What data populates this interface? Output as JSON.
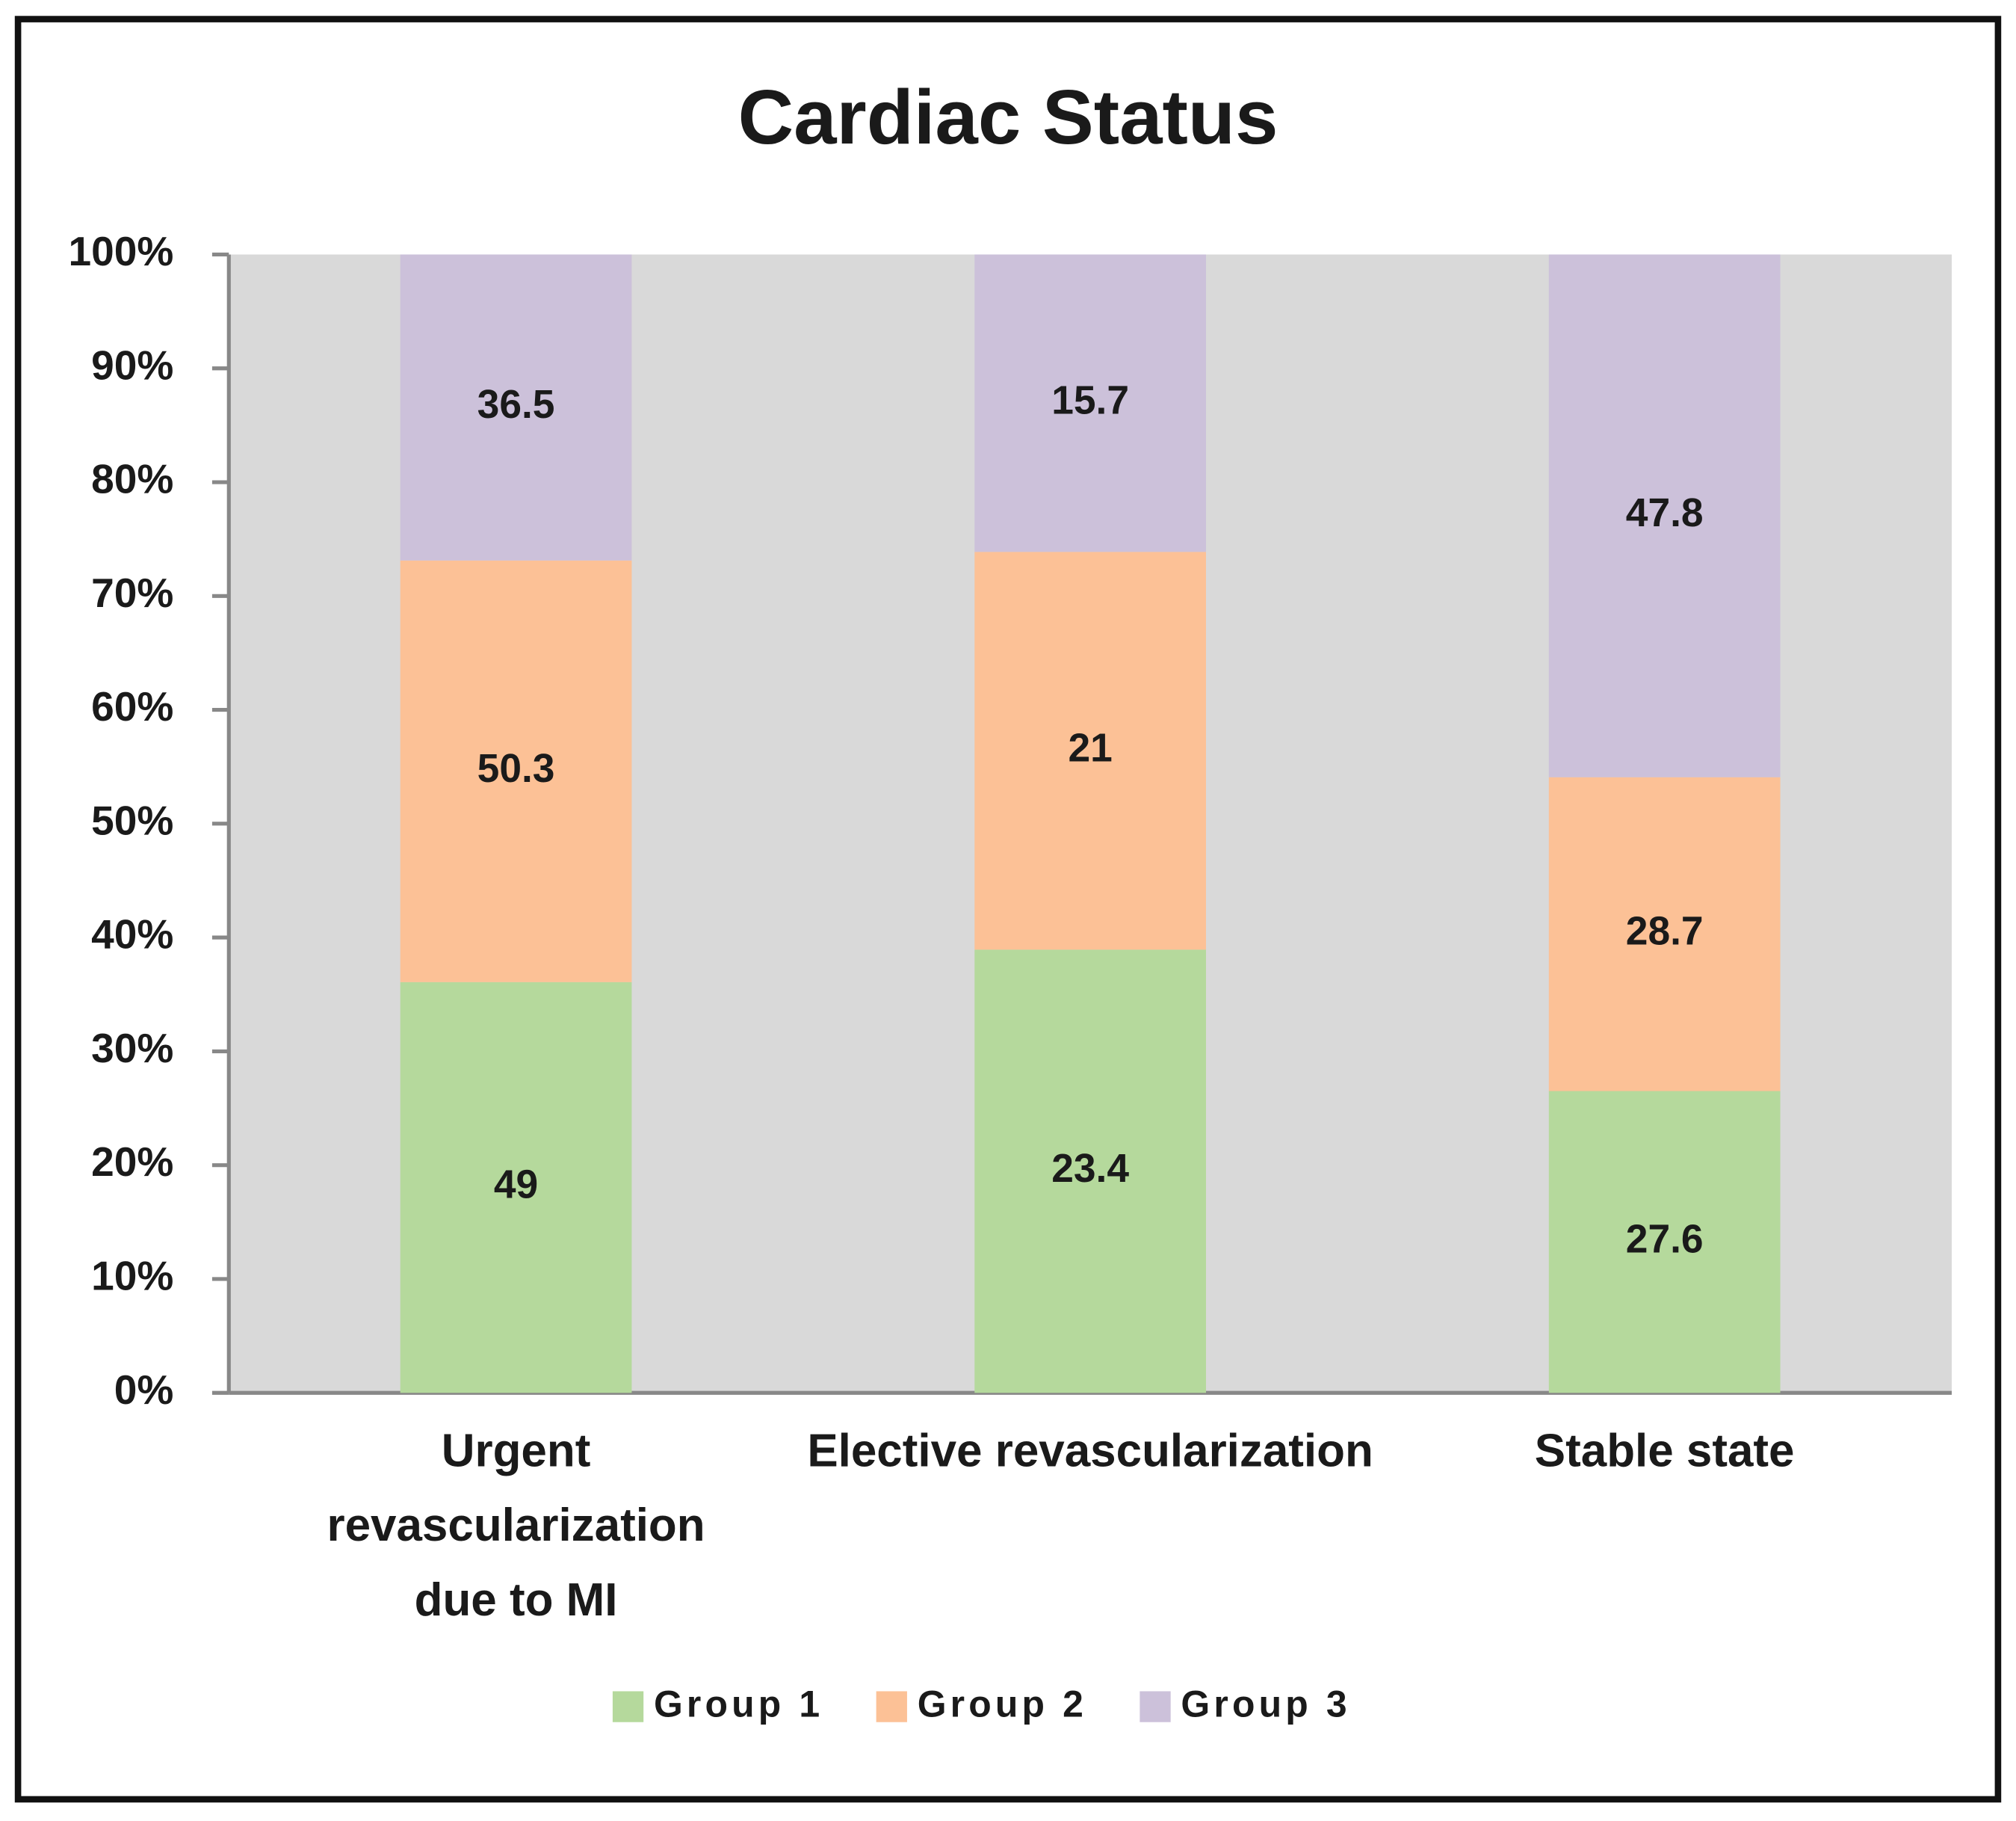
{
  "chart_data": {
    "type": "bar",
    "stacking": "percent",
    "title": "Cardiac Status",
    "categories": [
      "Urgent revascularization due to MI",
      "Elective revascularization",
      "Stable state"
    ],
    "series": [
      {
        "name": "Group 1",
        "color": "#b5d99c",
        "values": [
          49,
          23.4,
          27.6
        ]
      },
      {
        "name": "Group 2",
        "color": "#fcc196",
        "values": [
          50.3,
          21,
          28.7
        ]
      },
      {
        "name": "Group 3",
        "color": "#ccc1da",
        "values": [
          36.5,
          15.7,
          47.8
        ]
      }
    ],
    "ylim": [
      0,
      100
    ],
    "yticks": [
      {
        "value": 0,
        "label": "0%"
      },
      {
        "value": 10,
        "label": "10%"
      },
      {
        "value": 20,
        "label": "20%"
      },
      {
        "value": 30,
        "label": "30%"
      },
      {
        "value": 40,
        "label": "40%"
      },
      {
        "value": 50,
        "label": "50%"
      },
      {
        "value": 60,
        "label": "60%"
      },
      {
        "value": 70,
        "label": "70%"
      },
      {
        "value": 80,
        "label": "80%"
      },
      {
        "value": 90,
        "label": "90%"
      },
      {
        "value": 100,
        "label": "100%"
      }
    ],
    "legend": "bottom"
  }
}
